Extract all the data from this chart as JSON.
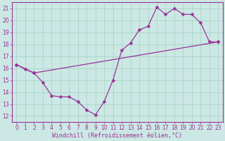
{
  "xlabel": "Windchill (Refroidissement éolien,°C)",
  "background_color": "#cce8e4",
  "line_color": "#993399",
  "xlim": [
    -0.5,
    23.5
  ],
  "ylim": [
    11.5,
    21.5
  ],
  "xticks": [
    0,
    1,
    2,
    3,
    4,
    5,
    6,
    7,
    8,
    9,
    10,
    11,
    12,
    13,
    14,
    15,
    16,
    17,
    18,
    19,
    20,
    21,
    22,
    23
  ],
  "yticks": [
    12,
    13,
    14,
    15,
    16,
    17,
    18,
    19,
    20,
    21
  ],
  "curve1_x": [
    0,
    1,
    2,
    3,
    4,
    5,
    6,
    7,
    8,
    9,
    10,
    11,
    12,
    13,
    14,
    15,
    16,
    17,
    18,
    19,
    20,
    21,
    22,
    23
  ],
  "curve1_y": [
    16.3,
    15.9,
    15.6,
    14.8,
    13.7,
    13.6,
    13.6,
    13.2,
    12.5,
    12.1,
    13.2,
    15.0,
    17.5,
    18.1,
    19.2,
    19.5,
    21.1,
    20.5,
    21.0,
    20.5,
    20.5,
    19.8,
    18.2,
    18.2
  ],
  "curve2_x": [
    0,
    2,
    23
  ],
  "curve2_y": [
    16.3,
    15.6,
    18.2
  ],
  "grid_color": "#99ccbb",
  "marker": "D",
  "markersize": 2.5,
  "linewidth": 0.9,
  "tick_labelsize": 5.5,
  "xlabel_fontsize": 6
}
